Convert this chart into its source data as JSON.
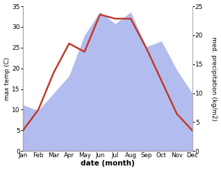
{
  "months": [
    "Jan",
    "Feb",
    "Mar",
    "Apr",
    "May",
    "Jun",
    "Jul",
    "Aug",
    "Sep",
    "Oct",
    "Nov",
    "Dec"
  ],
  "x": [
    0,
    1,
    2,
    3,
    4,
    5,
    6,
    7,
    8,
    9,
    10,
    11
  ],
  "temperature": [
    5,
    10,
    19,
    26,
    24,
    33,
    32,
    32,
    25,
    17,
    9,
    5
  ],
  "precipitation": [
    8,
    7,
    10,
    13,
    20,
    24,
    22,
    24,
    18,
    19,
    14,
    10
  ],
  "temp_color": "#c0392b",
  "precip_color": "#b3bcee",
  "ylabel_left": "max temp (C)",
  "ylabel_right": "med. precipitation (kg/m2)",
  "xlabel": "date (month)",
  "ylim_left": [
    0,
    35
  ],
  "ylim_right": [
    0,
    25
  ],
  "yticks_left": [
    0,
    5,
    10,
    15,
    20,
    25,
    30,
    35
  ],
  "yticks_right": [
    0,
    5,
    10,
    15,
    20,
    25
  ],
  "background_color": "#ffffff",
  "line_width": 1.8,
  "fig_width": 3.18,
  "fig_height": 2.47,
  "dpi": 100
}
